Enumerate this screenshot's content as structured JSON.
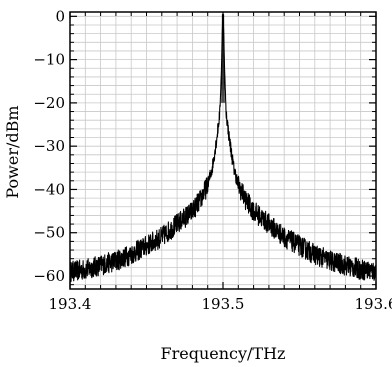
{
  "chart_data": {
    "type": "line",
    "title": "",
    "xlabel": "Frequency/THz",
    "ylabel": "Power/dBm",
    "xlim": [
      193.4,
      193.6
    ],
    "ylim": [
      -63,
      1
    ],
    "grid": true,
    "x_major_ticks": [
      193.4,
      193.5,
      193.6
    ],
    "x_tick_labels": [
      "193.4",
      "193.5",
      "193.6"
    ],
    "y_major_ticks": [
      0,
      -10,
      -20,
      -30,
      -40,
      -50,
      -60
    ],
    "y_tick_labels": [
      "0",
      "−10",
      "−20",
      "−30",
      "−40",
      "−50",
      "−60"
    ],
    "series": [
      {
        "color": "#000000",
        "x": [
          193.4,
          193.41,
          193.42,
          193.43,
          193.44,
          193.45,
          193.46,
          193.47,
          193.48,
          193.485,
          193.49,
          193.493,
          193.496,
          193.498,
          193.499,
          193.4995,
          193.5,
          193.5005,
          193.501,
          193.502,
          193.504,
          193.507,
          193.51,
          193.515,
          193.52,
          193.53,
          193.54,
          193.55,
          193.56,
          193.57,
          193.58,
          193.59,
          193.6
        ],
        "y": [
          -59,
          -58.5,
          -57.5,
          -56.5,
          -55,
          -53,
          -51,
          -48,
          -45,
          -42.5,
          -39,
          -35,
          -28,
          -22,
          -12,
          -4,
          0.5,
          -4,
          -12,
          -22,
          -28,
          -35,
          -39,
          -42.5,
          -45,
          -48,
          -51,
          -53,
          -55,
          -56.5,
          -57.5,
          -58.5,
          -59
        ]
      }
    ]
  }
}
